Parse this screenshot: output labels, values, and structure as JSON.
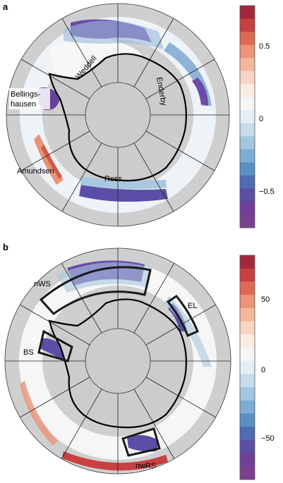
{
  "panel_a": {
    "letter": "a",
    "regions": {
      "weddell": "Weddell",
      "enderby": "Enderby",
      "bellingshausen_1": "Bellings-",
      "bellingshausen_2": "hausen",
      "amundsen": "Amundsen",
      "ross": "Ross"
    },
    "colorbar_ticks": [
      "0.5",
      "0",
      "−0.5"
    ]
  },
  "panel_b": {
    "letter": "b",
    "boxes": {
      "nws": "nWS",
      "el": "EL",
      "bs": "BS",
      "nwrs": "nwRS"
    },
    "colorbar_ticks": [
      "50",
      "0",
      "−50"
    ]
  },
  "colors": {
    "land": "#c8c8c8",
    "ocean_bg": "#d8d8d8",
    "scale": [
      "#a6273a",
      "#c94040",
      "#dd6a55",
      "#ec9378",
      "#f4b79b",
      "#f8d5c3",
      "#fbebe3",
      "#f6f6f6",
      "#e4eef5",
      "#c7dcea",
      "#a4c6df",
      "#7eadd3",
      "#5a8fc3",
      "#4e6bb4",
      "#5a4ea6",
      "#703f9a",
      "#7a3f8e"
    ]
  }
}
